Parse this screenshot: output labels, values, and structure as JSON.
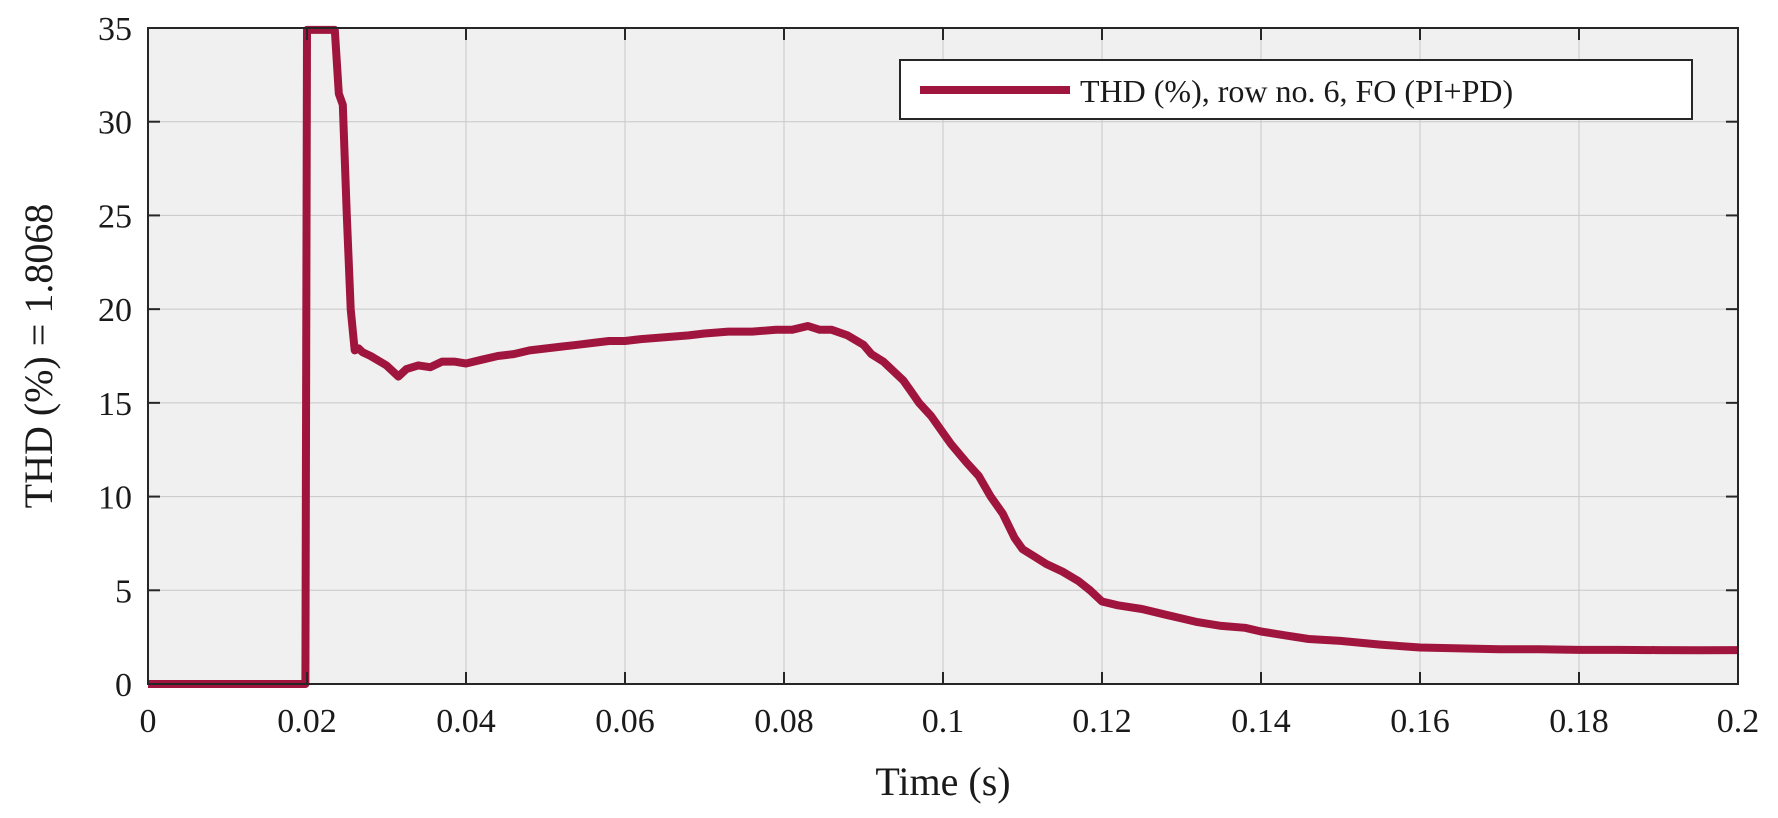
{
  "chart_data": {
    "type": "line",
    "title": "",
    "xlabel": "Time (s)",
    "ylabel": "THD (%) = 1.8068",
    "xlim": [
      0,
      0.2
    ],
    "ylim": [
      0,
      35
    ],
    "xticks": [
      0,
      0.02,
      0.04,
      0.06,
      0.08,
      0.1,
      0.12,
      0.14,
      0.16,
      0.18,
      0.2
    ],
    "xtick_labels": [
      "0",
      "0.02",
      "0.04",
      "0.06",
      "0.08",
      "0.1",
      "0.12",
      "0.14",
      "0.16",
      "0.18",
      "0.2"
    ],
    "yticks": [
      0,
      5,
      10,
      15,
      20,
      25,
      30,
      35
    ],
    "ytick_labels": [
      "0",
      "5",
      "10",
      "15",
      "20",
      "25",
      "30",
      "35"
    ],
    "grid": true,
    "legend_position": "top-right",
    "colors": {
      "line": "#a0153e",
      "plot_bg": "#f0f0f0",
      "grid": "#c8c8c8",
      "axis": "#262626"
    },
    "series": [
      {
        "name": "THD (%), row no. 6, FO (PI+PD)",
        "x": [
          0,
          0.0198,
          0.02,
          0.0201,
          0.0235,
          0.024,
          0.0245,
          0.025,
          0.0255,
          0.026,
          0.0265,
          0.027,
          0.028,
          0.03,
          0.0315,
          0.0325,
          0.034,
          0.0355,
          0.037,
          0.0385,
          0.04,
          0.042,
          0.044,
          0.046,
          0.048,
          0.05,
          0.052,
          0.054,
          0.056,
          0.058,
          0.06,
          0.062,
          0.065,
          0.068,
          0.07,
          0.073,
          0.076,
          0.079,
          0.081,
          0.083,
          0.0845,
          0.086,
          0.088,
          0.09,
          0.091,
          0.0925,
          0.094,
          0.095,
          0.096,
          0.097,
          0.0985,
          0.1,
          0.101,
          0.103,
          0.1045,
          0.106,
          0.1075,
          0.109,
          0.11,
          0.1115,
          0.113,
          0.115,
          0.117,
          0.1185,
          0.12,
          0.122,
          0.125,
          0.128,
          0.13,
          0.132,
          0.135,
          0.138,
          0.14,
          0.143,
          0.146,
          0.15,
          0.155,
          0.16,
          0.165,
          0.17,
          0.175,
          0.18,
          0.185,
          0.19,
          0.195,
          0.2
        ],
        "y": [
          0,
          0,
          34.9,
          34.9,
          34.9,
          31.5,
          30.9,
          25.0,
          20.0,
          17.8,
          17.9,
          17.7,
          17.5,
          17.0,
          16.4,
          16.8,
          17.0,
          16.9,
          17.2,
          17.2,
          17.1,
          17.3,
          17.5,
          17.6,
          17.8,
          17.9,
          18.0,
          18.1,
          18.2,
          18.3,
          18.3,
          18.4,
          18.5,
          18.6,
          18.7,
          18.8,
          18.8,
          18.9,
          18.9,
          19.1,
          18.9,
          18.9,
          18.6,
          18.1,
          17.6,
          17.2,
          16.6,
          16.2,
          15.6,
          15.0,
          14.3,
          13.4,
          12.8,
          11.8,
          11.1,
          10.0,
          9.1,
          7.8,
          7.2,
          6.8,
          6.4,
          6.0,
          5.5,
          5.0,
          4.4,
          4.2,
          4.0,
          3.7,
          3.5,
          3.3,
          3.1,
          3.0,
          2.8,
          2.6,
          2.4,
          2.3,
          2.1,
          1.95,
          1.9,
          1.85,
          1.85,
          1.82,
          1.82,
          1.81,
          1.8,
          1.81
        ]
      }
    ]
  }
}
